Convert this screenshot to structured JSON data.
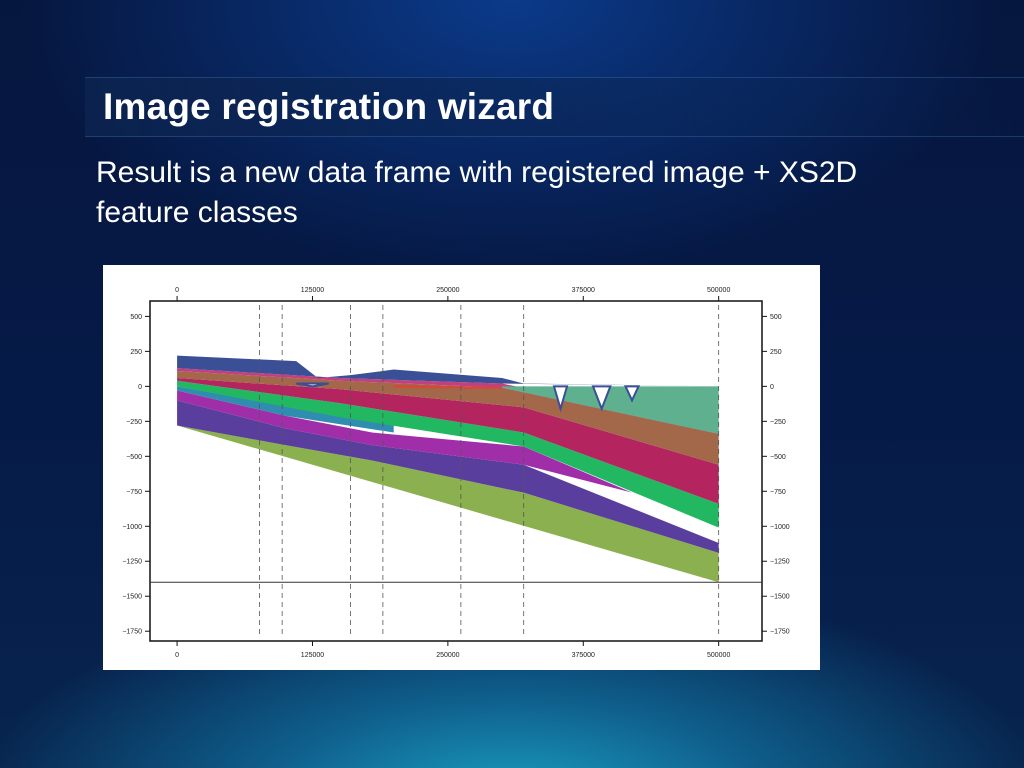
{
  "slide": {
    "title": "Image registration wizard",
    "body": "Result is a new data frame with registered image + XS2D feature classes"
  },
  "chart_data": {
    "type": "area",
    "x_ticks": [
      0,
      125000,
      250000,
      375000,
      500000
    ],
    "y_ticks": [
      500,
      250,
      0,
      -250,
      -500,
      -750,
      -1000,
      -1250,
      -1500,
      -1750
    ],
    "y_tick_labels": [
      "500",
      "250",
      "0",
      "−250",
      "−500",
      "−750",
      "−1000",
      "−1250",
      "−1500",
      "−1750"
    ],
    "xlim": [
      -25000,
      540000
    ],
    "ylim": [
      -1820,
      610
    ],
    "layers": [
      {
        "color": "#8bb04f",
        "top": [
          [
            0,
            -280
          ],
          [
            100000,
            -420
          ],
          [
            180000,
            -530
          ],
          [
            320000,
            -760
          ],
          [
            500000,
            -1190
          ]
        ],
        "bottom": [
          [
            0,
            -280
          ],
          [
            500000,
            -1400
          ]
        ]
      },
      {
        "color": "#5a3e9e",
        "top": [
          [
            0,
            -100
          ],
          [
            100000,
            -300
          ],
          [
            180000,
            -420
          ],
          [
            320000,
            -560
          ],
          [
            500000,
            -1120
          ]
        ],
        "bottom": [
          [
            0,
            -280
          ],
          [
            100000,
            -420
          ],
          [
            180000,
            -530
          ],
          [
            320000,
            -760
          ],
          [
            500000,
            -1190
          ]
        ]
      },
      {
        "color": "#a02ea8",
        "top": [
          [
            0,
            -30
          ],
          [
            100000,
            -210
          ],
          [
            180000,
            -330
          ],
          [
            320000,
            -430
          ],
          [
            420000,
            -760
          ]
        ],
        "bottom": [
          [
            0,
            -100
          ],
          [
            100000,
            -300
          ],
          [
            180000,
            -420
          ],
          [
            320000,
            -560
          ],
          [
            420000,
            -760
          ]
        ]
      },
      {
        "color": "#2f8db0",
        "top": [
          [
            0,
            0
          ],
          [
            100000,
            -140
          ],
          [
            200000,
            -250
          ]
        ],
        "bottom": [
          [
            0,
            -30
          ],
          [
            100000,
            -210
          ],
          [
            200000,
            -330
          ]
        ]
      },
      {
        "color": "#22b862",
        "top": [
          [
            0,
            40
          ],
          [
            150000,
            -120
          ],
          [
            320000,
            -330
          ],
          [
            500000,
            -840
          ]
        ],
        "bottom": [
          [
            0,
            0
          ],
          [
            150000,
            -220
          ],
          [
            320000,
            -430
          ],
          [
            500000,
            -1010
          ]
        ]
      },
      {
        "color": "#b4245f",
        "top": [
          [
            0,
            60
          ],
          [
            150000,
            -20
          ],
          [
            320000,
            -150
          ],
          [
            500000,
            -560
          ]
        ],
        "bottom": [
          [
            0,
            40
          ],
          [
            150000,
            -120
          ],
          [
            320000,
            -330
          ],
          [
            500000,
            -840
          ]
        ]
      },
      {
        "color": "#a3674a",
        "top": [
          [
            0,
            110
          ],
          [
            150000,
            40
          ],
          [
            300000,
            -10
          ],
          [
            500000,
            -340
          ]
        ],
        "bottom": [
          [
            0,
            60
          ],
          [
            150000,
            -20
          ],
          [
            320000,
            -150
          ],
          [
            500000,
            -560
          ]
        ]
      },
      {
        "color": "#c2407f",
        "top": [
          [
            0,
            130
          ],
          [
            150000,
            60
          ],
          [
            300000,
            20
          ],
          [
            500000,
            -300
          ]
        ],
        "bottom": [
          [
            0,
            110
          ],
          [
            150000,
            40
          ],
          [
            300000,
            -10
          ],
          [
            500000,
            -340
          ]
        ]
      },
      {
        "color": "#5fb08f",
        "top": [
          [
            300000,
            0
          ],
          [
            500000,
            0
          ]
        ],
        "bottom": [
          [
            300000,
            -10
          ],
          [
            500000,
            -340
          ]
        ]
      },
      {
        "color": "#d24a3a",
        "top": [
          [
            200000,
            10
          ],
          [
            300000,
            -5
          ]
        ],
        "bottom": [
          [
            200000,
            -10
          ],
          [
            300000,
            -20
          ]
        ]
      },
      {
        "color": "#3a4f96",
        "top": [
          [
            0,
            220
          ],
          [
            110000,
            180
          ],
          [
            130000,
            60
          ],
          [
            160000,
            80
          ],
          [
            200000,
            120
          ],
          [
            300000,
            60
          ],
          [
            320000,
            20
          ],
          [
            500000,
            0
          ]
        ],
        "bottom": [
          [
            0,
            130
          ],
          [
            150000,
            60
          ],
          [
            300000,
            20
          ],
          [
            500000,
            0
          ]
        ]
      }
    ],
    "channels": [
      [
        [
          110000,
          20
        ],
        [
          125000,
          0
        ],
        [
          140000,
          20
        ]
      ],
      [
        [
          348000,
          0
        ],
        [
          354000,
          -160
        ],
        [
          360000,
          0
        ]
      ],
      [
        [
          384000,
          0
        ],
        [
          392000,
          -160
        ],
        [
          400000,
          0
        ]
      ],
      [
        [
          414000,
          0
        ],
        [
          420000,
          -100
        ],
        [
          426000,
          0
        ]
      ]
    ],
    "well_lines_x": [
      76000,
      97000,
      160000,
      190000,
      262000,
      320000,
      500000
    ],
    "baseline_y": -1400
  }
}
